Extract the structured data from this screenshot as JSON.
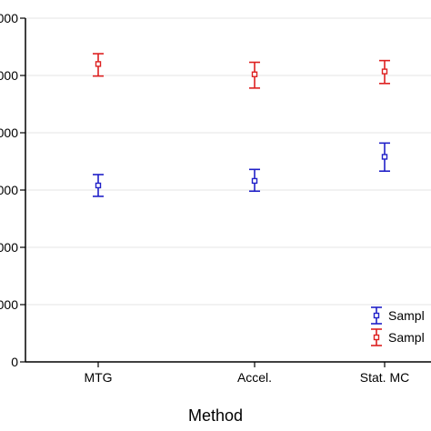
{
  "chart_data": {
    "type": "scatter",
    "xlabel": "Method",
    "ylabel": "",
    "categories": [
      "MTG",
      "Accel.",
      "Stat. MC"
    ],
    "y_tick_labels": [
      "000",
      "000",
      "000",
      "000",
      "000",
      "000",
      "0"
    ],
    "y_ticks": [
      6,
      5,
      4,
      3,
      2,
      1,
      0
    ],
    "ylim": [
      0,
      6
    ],
    "grid": true,
    "legend_position": "bottom-right",
    "series": [
      {
        "name": "Sampl",
        "color": "#2020c8",
        "marker": "square",
        "values": [
          3.08,
          3.16,
          3.58
        ],
        "err_low": [
          2.89,
          2.98,
          3.33
        ],
        "err_high": [
          3.27,
          3.36,
          3.82
        ]
      },
      {
        "name": "Sampl",
        "color": "#dd2020",
        "marker": "square",
        "values": [
          5.2,
          5.02,
          5.07
        ],
        "err_low": [
          4.99,
          4.78,
          4.86
        ],
        "err_high": [
          5.38,
          5.23,
          5.26
        ]
      }
    ]
  }
}
